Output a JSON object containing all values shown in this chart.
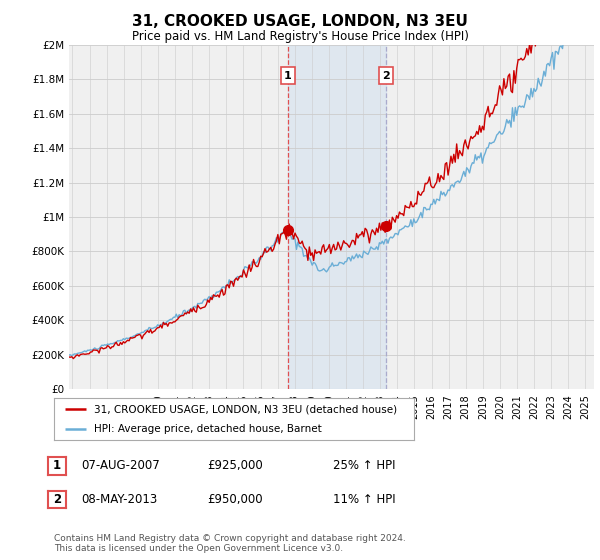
{
  "title": "31, CROOKED USAGE, LONDON, N3 3EU",
  "subtitle": "Price paid vs. HM Land Registry's House Price Index (HPI)",
  "ylabel_ticks": [
    "£0",
    "£200K",
    "£400K",
    "£600K",
    "£800K",
    "£1M",
    "£1.2M",
    "£1.4M",
    "£1.6M",
    "£1.8M",
    "£2M"
  ],
  "ytick_values": [
    0,
    200000,
    400000,
    600000,
    800000,
    1000000,
    1200000,
    1400000,
    1600000,
    1800000,
    2000000
  ],
  "ylim": [
    0,
    2000000
  ],
  "xlim_start": 1994.8,
  "xlim_end": 2025.5,
  "purchase1_date": 2007.6,
  "purchase1_price": 925000,
  "purchase2_date": 2013.35,
  "purchase2_price": 950000,
  "line_color_hpi": "#6baed6",
  "line_color_price": "#cc0000",
  "shaded_color": "#c6dbef",
  "vline1_color": "#e05050",
  "vline2_color": "#aaaacc",
  "legend_label1": "31, CROOKED USAGE, LONDON, N3 3EU (detached house)",
  "legend_label2": "HPI: Average price, detached house, Barnet",
  "table_row1_date": "07-AUG-2007",
  "table_row1_price": "£925,000",
  "table_row1_hpi": "25% ↑ HPI",
  "table_row2_date": "08-MAY-2013",
  "table_row2_price": "£950,000",
  "table_row2_hpi": "11% ↑ HPI",
  "footer": "Contains HM Land Registry data © Crown copyright and database right 2024.\nThis data is licensed under the Open Government Licence v3.0.",
  "background_color": "#ffffff",
  "plot_bg_color": "#f0f0f0"
}
